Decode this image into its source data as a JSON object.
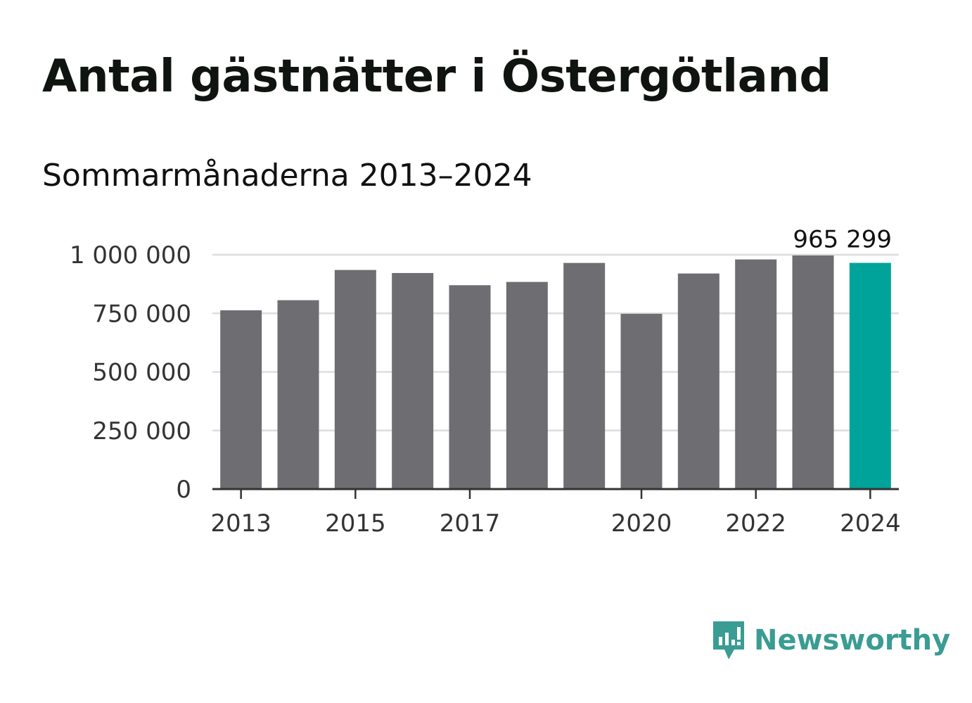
{
  "title": "Antal gästnätter i Östergötland",
  "subtitle": "Sommarmånaderna 2013–2024",
  "brand": {
    "name": "Newsworthy",
    "color": "#3a9c93",
    "icon": "newsworthy-logo-icon"
  },
  "colors": {
    "bar": "#6e6d72",
    "highlight": "#00a39a",
    "grid": "#dddddd",
    "axis": "#333333"
  },
  "chart_data": {
    "type": "bar",
    "categories": [
      2013,
      2014,
      2015,
      2016,
      2017,
      2018,
      2019,
      2020,
      2021,
      2022,
      2023,
      2024
    ],
    "values": [
      763000,
      806000,
      935000,
      922000,
      870000,
      884000,
      965000,
      748000,
      920000,
      980000,
      997000,
      965299
    ],
    "highlight_index": 11,
    "highlight_label": "965 299",
    "ylim": [
      0,
      1000000
    ],
    "yticks": [
      0,
      250000,
      500000,
      750000,
      1000000
    ],
    "ytick_labels": [
      "0",
      "250 000",
      "500 000",
      "750 000",
      "1 000 000"
    ],
    "xtick_labels": [
      "2013",
      "2015",
      "2017",
      "2020",
      "2022",
      "2024"
    ],
    "xtick_positions": [
      2013,
      2015,
      2017,
      2020,
      2022,
      2024
    ],
    "grid": true
  }
}
